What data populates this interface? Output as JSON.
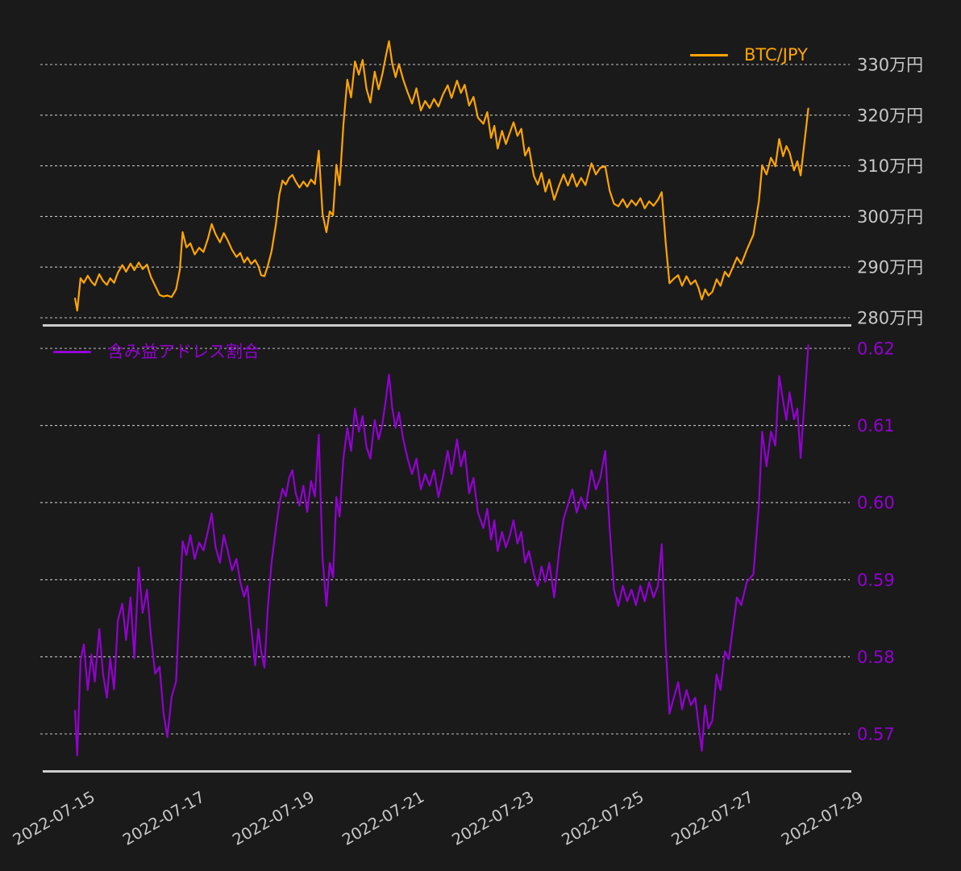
{
  "colors": {
    "background": "#1a1a1a",
    "grid": "#c2c2c2",
    "spine": "#cccccc",
    "tick_text": "#c8c8c8",
    "btc_line": "#FFA500",
    "ratio_line": "#9400D3"
  },
  "legend_top": {
    "label": "BTC/JPY"
  },
  "legend_bottom": {
    "label": "含み益アドレス割合"
  },
  "chart_data": {
    "type": "line",
    "title": "",
    "x_unit": "date (decimal day of 2022-07)",
    "xlim": [
      14.38,
      29.07
    ],
    "xticks": [
      15,
      17,
      19,
      21,
      23,
      25,
      27,
      29
    ],
    "xtick_labels": [
      "2022-07-15",
      "2022-07-17",
      "2022-07-19",
      "2022-07-21",
      "2022-07-23",
      "2022-07-25",
      "2022-07-27",
      "2022-07-29"
    ],
    "grid": true,
    "x": [
      14.94,
      14.98,
      15.04,
      15.1,
      15.17,
      15.24,
      15.3,
      15.38,
      15.45,
      15.52,
      15.58,
      15.65,
      15.72,
      15.8,
      15.87,
      15.95,
      16.02,
      16.1,
      16.17,
      16.25,
      16.32,
      16.4,
      16.48,
      16.55,
      16.62,
      16.7,
      16.78,
      16.85,
      16.9,
      16.97,
      17.04,
      17.12,
      17.2,
      17.28,
      17.36,
      17.43,
      17.5,
      17.58,
      17.65,
      17.72,
      17.8,
      17.88,
      17.95,
      18.02,
      18.08,
      18.15,
      18.22,
      18.28,
      18.33,
      18.39,
      18.45,
      18.52,
      18.6,
      18.66,
      18.72,
      18.78,
      18.84,
      18.9,
      18.96,
      19.03,
      19.1,
      19.17,
      19.24,
      19.31,
      19.38,
      19.45,
      19.52,
      19.58,
      19.64,
      19.7,
      19.76,
      19.83,
      19.9,
      19.97,
      20.04,
      20.11,
      20.18,
      20.25,
      20.32,
      20.4,
      20.47,
      20.54,
      20.6,
      20.66,
      20.72,
      20.78,
      20.84,
      20.92,
      21.0,
      21.08,
      21.16,
      21.24,
      21.32,
      21.4,
      21.48,
      21.56,
      21.64,
      21.73,
      21.8,
      21.9,
      21.97,
      22.04,
      22.12,
      22.2,
      22.28,
      22.38,
      22.45,
      22.52,
      22.58,
      22.64,
      22.72,
      22.79,
      22.86,
      22.93,
      23.0,
      23.07,
      23.14,
      23.21,
      23.3,
      23.37,
      23.44,
      23.51,
      23.58,
      23.67,
      23.76,
      23.84,
      23.92,
      24.0,
      24.08,
      24.16,
      24.24,
      24.35,
      24.43,
      24.51,
      24.6,
      24.68,
      24.76,
      24.84,
      24.92,
      25.0,
      25.08,
      25.16,
      25.24,
      25.32,
      25.4,
      25.48,
      25.56,
      25.63,
      25.7,
      25.77,
      25.85,
      25.93,
      26.0,
      26.08,
      26.16,
      26.24,
      26.3,
      26.36,
      26.42,
      26.48,
      26.55,
      26.63,
      26.7,
      26.78,
      26.85,
      27.0,
      27.08,
      27.18,
      27.3,
      27.4,
      27.46,
      27.54,
      27.62,
      27.7,
      27.77,
      27.84,
      27.9,
      27.96,
      28.04,
      28.1,
      28.16,
      28.3
    ],
    "series": [
      {
        "name": "BTC/JPY",
        "panel": "top",
        "color": "#FFA500",
        "legend_position": "upper right",
        "unit": "万円",
        "yticks": [
          330,
          320,
          310,
          300,
          290,
          280
        ],
        "ytick_labels": [
          "330万円",
          "320万円",
          "310万円",
          "300万円",
          "290万円",
          "280万円"
        ],
        "ytick_color": "#c8c8c8",
        "ylim": [
          278.6,
          339.5
        ],
        "values": [
          283.8,
          281.4,
          287.8,
          286.9,
          288.3,
          287.1,
          286.4,
          288.6,
          287.3,
          286.5,
          287.8,
          286.9,
          288.9,
          290.4,
          289.1,
          290.7,
          289.4,
          290.9,
          289.6,
          290.5,
          288.1,
          286.3,
          284.5,
          284.2,
          284.4,
          284.1,
          285.6,
          289.5,
          296.9,
          293.9,
          294.7,
          292.5,
          293.8,
          293.0,
          295.6,
          298.5,
          296.5,
          294.9,
          296.7,
          295.3,
          293.4,
          292.0,
          292.8,
          290.9,
          291.9,
          290.6,
          291.4,
          290.2,
          288.4,
          288.2,
          290.2,
          293.1,
          298.5,
          304.2,
          307.1,
          306.3,
          307.6,
          308.2,
          306.9,
          305.7,
          306.9,
          305.9,
          307.3,
          306.4,
          313.0,
          300.5,
          296.9,
          301.0,
          300.2,
          310.2,
          306.2,
          318.2,
          327.0,
          323.5,
          330.6,
          328.0,
          330.9,
          325.2,
          322.5,
          328.6,
          325.1,
          328.1,
          331.5,
          334.6,
          330.1,
          327.5,
          330.1,
          327.0,
          324.5,
          322.3,
          325.3,
          320.9,
          322.8,
          321.4,
          323.2,
          321.7,
          324.0,
          325.9,
          323.4,
          326.8,
          324.4,
          326.0,
          321.9,
          323.6,
          319.5,
          318.3,
          320.6,
          315.5,
          317.9,
          313.4,
          316.9,
          314.3,
          316.5,
          318.6,
          315.9,
          317.3,
          312.0,
          313.6,
          308.0,
          306.3,
          308.6,
          304.9,
          307.3,
          303.3,
          306.1,
          308.3,
          306.1,
          308.4,
          305.9,
          307.6,
          306.2,
          310.5,
          308.3,
          309.6,
          309.9,
          305.1,
          302.5,
          302.0,
          303.4,
          301.8,
          303.2,
          302.2,
          303.6,
          301.6,
          303.0,
          302.1,
          303.3,
          304.8,
          295.0,
          286.8,
          287.7,
          288.4,
          286.3,
          288.2,
          286.6,
          287.4,
          285.9,
          283.6,
          285.6,
          284.4,
          285.1,
          287.6,
          286.3,
          289.1,
          288.1,
          291.9,
          290.6,
          293.4,
          296.4,
          303.0,
          310.1,
          308.3,
          311.6,
          309.9,
          315.3,
          311.9,
          313.9,
          312.6,
          309.1,
          310.9,
          308.1,
          321.3
        ]
      },
      {
        "name": "含み益アドレス割合",
        "panel": "bottom",
        "color": "#9400D3",
        "legend_position": "upper left",
        "unit": "",
        "yticks": [
          0.62,
          0.61,
          0.6,
          0.59,
          0.58,
          0.57
        ],
        "ytick_labels": [
          "0.62",
          "0.61",
          "0.60",
          "0.59",
          "0.58",
          "0.57"
        ],
        "ytick_color": "#9400D3",
        "ylim": [
          0.5651,
          0.6223
        ],
        "values": [
          0.573,
          0.5672,
          0.5795,
          0.5816,
          0.5757,
          0.5803,
          0.5768,
          0.5836,
          0.5778,
          0.5747,
          0.5798,
          0.5758,
          0.5847,
          0.5869,
          0.5822,
          0.5877,
          0.5798,
          0.5916,
          0.5857,
          0.5887,
          0.5828,
          0.5778,
          0.5787,
          0.5728,
          0.5696,
          0.5748,
          0.5768,
          0.5877,
          0.595,
          0.5932,
          0.5958,
          0.5927,
          0.5948,
          0.5938,
          0.5963,
          0.5986,
          0.5942,
          0.5922,
          0.5958,
          0.5938,
          0.5912,
          0.5927,
          0.5897,
          0.5878,
          0.5892,
          0.5838,
          0.5789,
          0.5836,
          0.5807,
          0.5786,
          0.5862,
          0.5922,
          0.5967,
          0.5998,
          0.6018,
          0.6008,
          0.6032,
          0.6042,
          0.6012,
          0.5996,
          0.6022,
          0.5988,
          0.6028,
          0.6008,
          0.6088,
          0.5927,
          0.5866,
          0.5922,
          0.5903,
          0.6007,
          0.5982,
          0.6058,
          0.6097,
          0.6067,
          0.6122,
          0.6092,
          0.6112,
          0.6072,
          0.6057,
          0.6107,
          0.6082,
          0.6102,
          0.6132,
          0.6166,
          0.6122,
          0.6097,
          0.6117,
          0.6082,
          0.6057,
          0.6037,
          0.6057,
          0.6017,
          0.6037,
          0.6022,
          0.6042,
          0.6007,
          0.6032,
          0.6067,
          0.6037,
          0.6082,
          0.6047,
          0.6067,
          0.6012,
          0.6032,
          0.5987,
          0.5967,
          0.5992,
          0.5952,
          0.5977,
          0.5937,
          0.5962,
          0.5942,
          0.5957,
          0.5977,
          0.5947,
          0.5962,
          0.5922,
          0.5937,
          0.5907,
          0.5892,
          0.5917,
          0.5897,
          0.5922,
          0.5877,
          0.5937,
          0.5979,
          0.5997,
          0.6017,
          0.5987,
          0.6007,
          0.5992,
          0.6042,
          0.6017,
          0.6032,
          0.6067,
          0.5967,
          0.5887,
          0.5866,
          0.5892,
          0.5872,
          0.5887,
          0.5867,
          0.5892,
          0.5872,
          0.5897,
          0.5877,
          0.5892,
          0.5946,
          0.5817,
          0.5726,
          0.5747,
          0.5767,
          0.5732,
          0.5757,
          0.5737,
          0.5747,
          0.5712,
          0.5678,
          0.5737,
          0.5707,
          0.5717,
          0.5777,
          0.5757,
          0.5807,
          0.5797,
          0.5877,
          0.5867,
          0.5897,
          0.5907,
          0.5997,
          0.6092,
          0.6047,
          0.6092,
          0.6074,
          0.6164,
          0.6132,
          0.6107,
          0.6143,
          0.6108,
          0.6122,
          0.6058,
          0.6204
        ]
      }
    ]
  }
}
